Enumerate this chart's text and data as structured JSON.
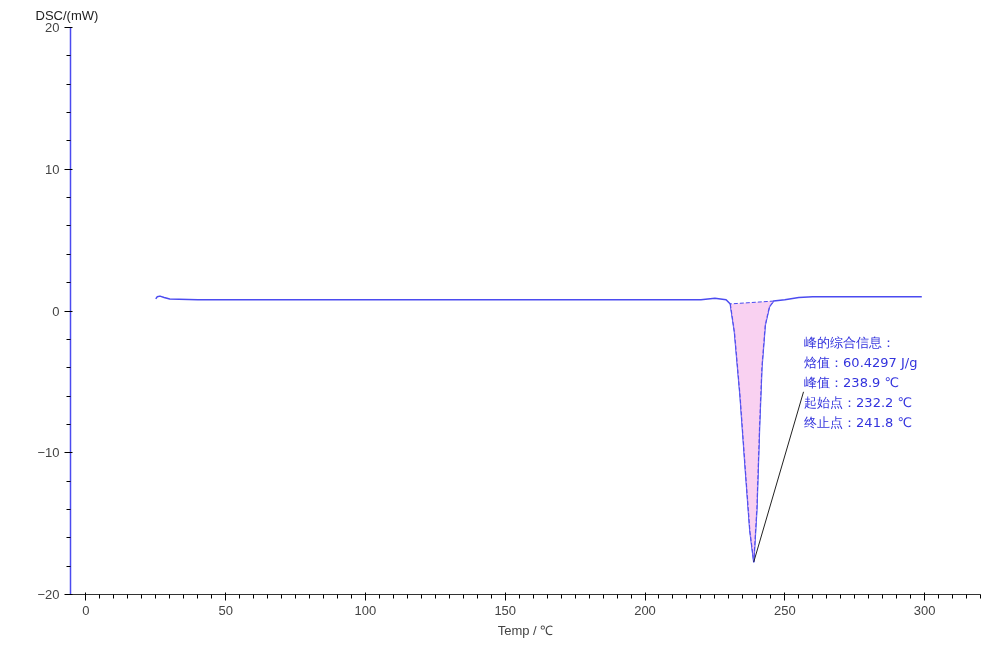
{
  "chart_data": {
    "type": "line",
    "ylabel": "DSC/(mW)",
    "xlabel": "Temp / ℃",
    "xlim": [
      -5.5,
      320
    ],
    "ylim": [
      -20,
      20
    ],
    "xticks": [
      0,
      50,
      100,
      150,
      200,
      250,
      300
    ],
    "yticks": [
      -20,
      -10,
      0,
      10,
      20
    ],
    "grid": false,
    "marker": "none",
    "line_style": "solid",
    "series": [
      {
        "color": "#4b4bf0",
        "x": [
          25,
          25.5,
          26.5,
          28,
          30,
          40,
          100,
          150,
          200,
          220,
          225,
          227,
          229,
          230.5,
          232,
          234,
          236,
          237.5,
          238.9,
          240,
          241,
          241.8,
          243,
          244.5,
          246,
          250,
          255,
          260,
          280,
          299
        ],
        "values": [
          0.85,
          1.0,
          1.05,
          0.95,
          0.85,
          0.8,
          0.8,
          0.8,
          0.8,
          0.8,
          0.9,
          0.85,
          0.8,
          0.5,
          -1.5,
          -6,
          -11.5,
          -15.5,
          -17.7,
          -14,
          -8,
          -4,
          -1,
          0.3,
          0.7,
          0.8,
          0.95,
          1.0,
          1.0,
          1.0
        ]
      },
      {
        "type": "area",
        "color": "#f7c6ee",
        "x": [
          230.5,
          232,
          234,
          236,
          237.5,
          238.9,
          240,
          241,
          241.8,
          243,
          244.5,
          246
        ],
        "values": [
          0.5,
          -1.5,
          -6,
          -11.5,
          -15.5,
          -17.7,
          -14,
          -8,
          -4,
          -1,
          0.3,
          0.7
        ]
      }
    ],
    "annotations": [
      "峰的综合信息：",
      "焓值：60.4297 J/g",
      {
        "text": "峰值：238.9 ℃",
        "x": 238.9,
        "y": -17.7
      },
      "起始点：232.2 ℃",
      "终止点：241.8 ℃"
    ]
  }
}
